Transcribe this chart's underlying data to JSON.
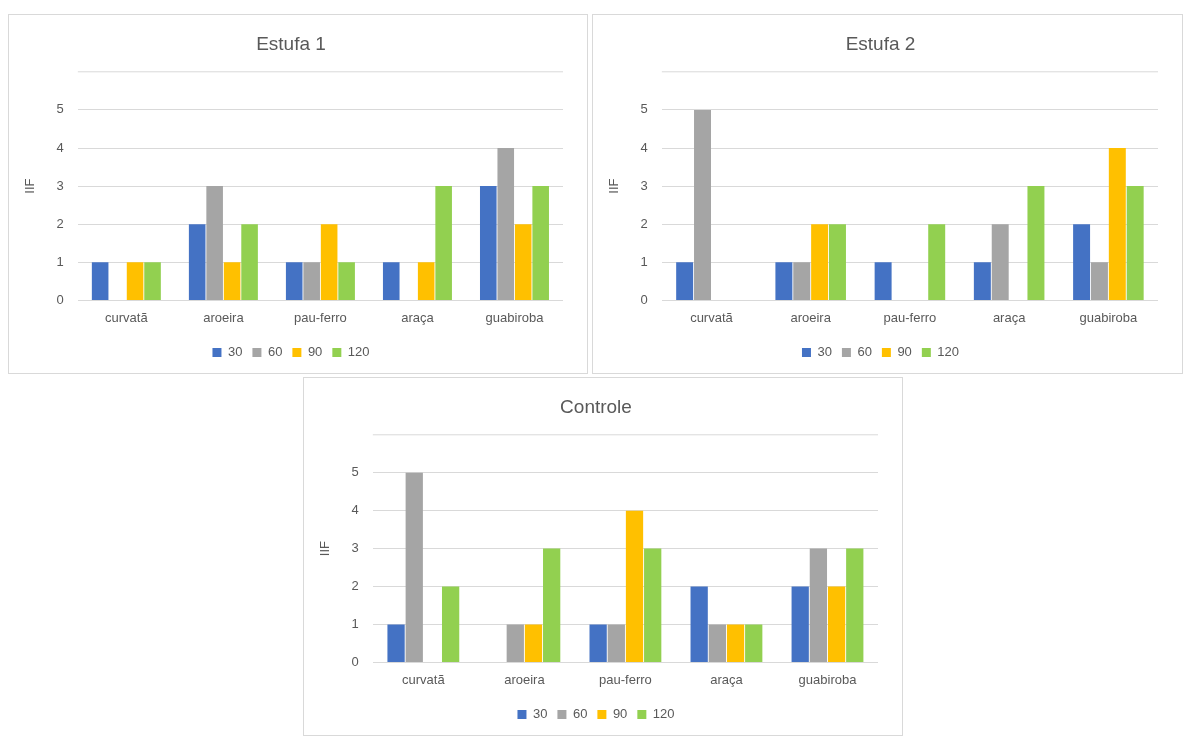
{
  "chart_data": [
    {
      "type": "bar",
      "title": "Estufa 1",
      "ylabel": "IIF",
      "categories": [
        "curvatã",
        "aroeira",
        "pau-ferro",
        "araça",
        "guabiroba"
      ],
      "ylim": [
        0,
        6
      ],
      "yticks": [
        0,
        1,
        2,
        3,
        4,
        5
      ],
      "grid": "y",
      "legend": "bottom",
      "series": [
        {
          "name": "30",
          "color": "#4472c4",
          "values": [
            1,
            2,
            1,
            1,
            3
          ]
        },
        {
          "name": "60",
          "color": "#a5a5a5",
          "values": [
            0,
            3,
            1,
            0,
            4
          ]
        },
        {
          "name": "90",
          "color": "#ffc000",
          "values": [
            1,
            1,
            2,
            1,
            2
          ]
        },
        {
          "name": "120",
          "color": "#92d050",
          "values": [
            1,
            2,
            1,
            3,
            3
          ]
        }
      ]
    },
    {
      "type": "bar",
      "title": "Estufa 2",
      "ylabel": "IIF",
      "categories": [
        "curvatã",
        "aroeira",
        "pau-ferro",
        "araça",
        "guabiroba"
      ],
      "ylim": [
        0,
        6
      ],
      "yticks": [
        0,
        1,
        2,
        3,
        4,
        5
      ],
      "grid": "y",
      "legend": "bottom",
      "series": [
        {
          "name": "30",
          "color": "#4472c4",
          "values": [
            1,
            1,
            1,
            1,
            2
          ]
        },
        {
          "name": "60",
          "color": "#a5a5a5",
          "values": [
            5,
            1,
            0,
            2,
            1
          ]
        },
        {
          "name": "90",
          "color": "#ffc000",
          "values": [
            0,
            2,
            0,
            0,
            4
          ]
        },
        {
          "name": "120",
          "color": "#92d050",
          "values": [
            0,
            2,
            2,
            3,
            3
          ]
        }
      ]
    },
    {
      "type": "bar",
      "title": "Controle",
      "ylabel": "IIF",
      "categories": [
        "curvatã",
        "aroeira",
        "pau-ferro",
        "araça",
        "guabiroba"
      ],
      "ylim": [
        0,
        6
      ],
      "yticks": [
        0,
        1,
        2,
        3,
        4,
        5
      ],
      "grid": "y",
      "legend": "bottom",
      "series": [
        {
          "name": "30",
          "color": "#4472c4",
          "values": [
            1,
            0,
            1,
            2,
            2
          ]
        },
        {
          "name": "60",
          "color": "#a5a5a5",
          "values": [
            5,
            1,
            1,
            1,
            3
          ]
        },
        {
          "name": "90",
          "color": "#ffc000",
          "values": [
            0,
            1,
            4,
            1,
            2
          ]
        },
        {
          "name": "120",
          "color": "#92d050",
          "values": [
            2,
            3,
            3,
            1,
            3
          ]
        }
      ]
    }
  ]
}
